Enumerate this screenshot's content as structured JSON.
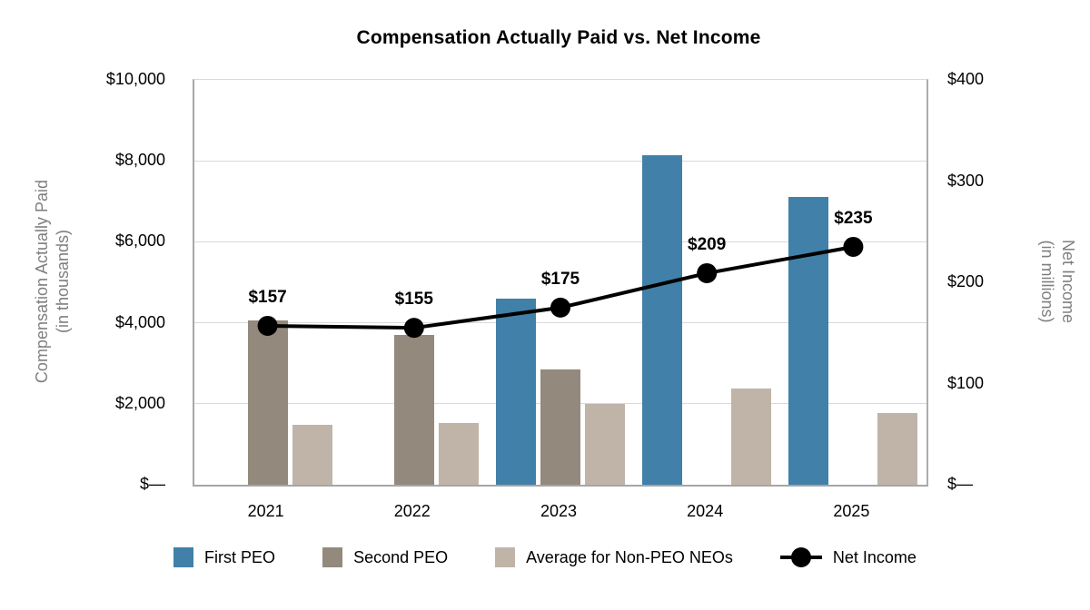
{
  "title": "Compensation Actually Paid vs. Net Income",
  "left_axis": {
    "title_line1": "Compensation Actually Paid",
    "title_line2": "(in thousands)",
    "ticks": [
      {
        "label": "$10,000",
        "value": 10000
      },
      {
        "label": "$8,000",
        "value": 8000
      },
      {
        "label": "$6,000",
        "value": 6000
      },
      {
        "label": "$4,000",
        "value": 4000
      },
      {
        "label": "$2,000",
        "value": 2000
      },
      {
        "label": "$—",
        "value": 0
      }
    ]
  },
  "right_axis": {
    "title_line1": "Net Income",
    "title_line2": "(in millions)",
    "ticks": [
      {
        "label": "$400",
        "value": 400
      },
      {
        "label": "$300",
        "value": 300
      },
      {
        "label": "$200",
        "value": 200
      },
      {
        "label": "$100",
        "value": 100
      },
      {
        "label": "$—",
        "value": 0
      }
    ]
  },
  "chart_data": {
    "type": "bar+line combo",
    "categories": [
      "2021",
      "2022",
      "2023",
      "2024",
      "2025"
    ],
    "series": [
      {
        "name": "First PEO",
        "type": "bar",
        "axis": "left",
        "color": "#4180A8",
        "values": [
          null,
          null,
          4600,
          8140,
          7100
        ]
      },
      {
        "name": "Second PEO",
        "type": "bar",
        "axis": "left",
        "color": "#93897C",
        "values": [
          4060,
          3700,
          2840,
          null,
          null
        ]
      },
      {
        "name": "Average for Non-PEO NEOs",
        "type": "bar",
        "axis": "left",
        "color": "#C0B4A8",
        "values": [
          1470,
          1520,
          2000,
          2380,
          1780
        ]
      },
      {
        "name": "Net Income",
        "type": "line",
        "axis": "right",
        "color": "#000000",
        "values": [
          157,
          155,
          175,
          209,
          235
        ],
        "point_labels": [
          "$157",
          "$155",
          "$175",
          "$209",
          "$235"
        ]
      }
    ],
    "left_ylim": [
      0,
      10000
    ],
    "right_ylim": [
      0,
      400
    ],
    "grid": true,
    "legend_position": "bottom",
    "colors": {
      "gridline": "#d9d9d9",
      "axis_line": "#a6a6a6",
      "axis_title_text": "#7f7f7f",
      "tick_text": "#000000",
      "data_label_text": "#000000"
    }
  },
  "legend": {
    "items": [
      {
        "label": "First PEO",
        "swatch": "square",
        "color": "#4180A8"
      },
      {
        "label": "Second PEO",
        "swatch": "square",
        "color": "#93897C"
      },
      {
        "label": "Average for Non-PEO NEOs",
        "swatch": "square",
        "color": "#C0B4A8"
      },
      {
        "label": "Net Income",
        "swatch": "line-dot",
        "color": "#000000"
      }
    ]
  }
}
